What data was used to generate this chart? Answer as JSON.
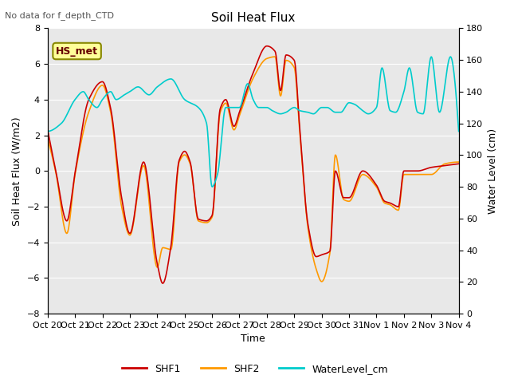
{
  "title": "Soil Heat Flux",
  "top_left_note": "No data for f_depth_CTD",
  "ylabel_left": "Soil Heat Flux (W/m2)",
  "ylabel_right": "Water Level (cm)",
  "xlabel": "Time",
  "ylim_left": [
    -8,
    8
  ],
  "ylim_right": [
    0,
    180
  ],
  "annotation_box": "HS_met",
  "bg_color": "#e8e8e8",
  "shf1_color": "#cc0000",
  "shf2_color": "#ff9900",
  "water_color": "#00cccc",
  "xtick_labels": [
    "Oct 20",
    "Oct 21",
    "Oct 22",
    "Oct 23",
    "Oct 24",
    "Oct 25",
    "Oct 26",
    "Oct 27",
    "Oct 28",
    "Oct 29",
    "Oct 30",
    "Oct 31",
    "Nov 1",
    "Nov 2",
    "Nov 3",
    "Nov 4"
  ],
  "xlim": [
    0,
    15
  ],
  "yticks_left": [
    -8,
    -6,
    -4,
    -2,
    0,
    2,
    4,
    6,
    8
  ],
  "yticks_right": [
    0,
    20,
    40,
    60,
    80,
    100,
    120,
    140,
    160,
    180
  ],
  "line_width": 1.2,
  "legend_items": [
    "SHF1",
    "SHF2",
    "WaterLevel_cm"
  ],
  "shf1_key_points": {
    "x": [
      0,
      0.3,
      0.7,
      1.0,
      1.5,
      2.0,
      2.3,
      2.7,
      3.0,
      3.5,
      4.0,
      4.2,
      4.5,
      4.8,
      5.0,
      5.2,
      5.5,
      5.8,
      6.0,
      6.3,
      6.5,
      6.8,
      7.0,
      7.5,
      8.0,
      8.3,
      8.5,
      8.7,
      9.0,
      9.2,
      9.5,
      9.8,
      10.0,
      10.3,
      10.5,
      10.8,
      11.0,
      11.5,
      12.0,
      12.3,
      12.5,
      12.8,
      13.0,
      13.5,
      14.0,
      14.5,
      15.0
    ],
    "y": [
      2.3,
      0.0,
      -2.8,
      -0.1,
      4.0,
      5.0,
      3.5,
      -1.5,
      -3.5,
      0.5,
      -5.2,
      -6.3,
      -4.2,
      0.6,
      1.1,
      0.5,
      -2.7,
      -2.8,
      -2.5,
      3.5,
      4.0,
      2.5,
      3.3,
      5.5,
      7.0,
      6.7,
      4.5,
      6.5,
      6.2,
      2.4,
      -3.0,
      -4.8,
      -4.7,
      -4.5,
      0.0,
      -1.5,
      -1.5,
      0.0,
      -0.8,
      -1.7,
      -1.8,
      -2.0,
      0.0,
      0.0,
      0.2,
      0.3,
      0.4
    ]
  },
  "shf2_key_points": {
    "x": [
      0,
      0.3,
      0.7,
      1.0,
      1.5,
      2.0,
      2.3,
      2.7,
      3.0,
      3.5,
      4.0,
      4.2,
      4.5,
      4.8,
      5.0,
      5.2,
      5.5,
      5.8,
      6.0,
      6.3,
      6.5,
      6.8,
      7.0,
      7.5,
      8.0,
      8.3,
      8.5,
      8.7,
      9.0,
      9.2,
      9.5,
      9.8,
      10.0,
      10.3,
      10.5,
      10.8,
      11.0,
      11.5,
      12.0,
      12.3,
      12.5,
      12.8,
      13.0,
      13.5,
      14.0,
      14.5,
      15.0
    ],
    "y": [
      1.8,
      -0.1,
      -3.5,
      -0.2,
      3.3,
      4.8,
      3.3,
      -2.0,
      -3.6,
      0.3,
      -5.4,
      -4.3,
      -4.4,
      0.5,
      0.9,
      0.4,
      -2.8,
      -2.9,
      -2.6,
      3.3,
      3.8,
      2.3,
      3.1,
      5.2,
      6.3,
      6.4,
      4.2,
      6.2,
      5.8,
      2.2,
      -3.2,
      -5.5,
      -6.2,
      -4.6,
      0.9,
      -1.6,
      -1.7,
      -0.2,
      -0.9,
      -1.8,
      -1.9,
      -2.2,
      -0.2,
      -0.2,
      -0.2,
      0.4,
      0.5
    ]
  },
  "water_key_points": {
    "x": [
      0,
      0.5,
      1.0,
      1.3,
      1.5,
      1.8,
      2.0,
      2.3,
      2.5,
      2.8,
      3.0,
      3.3,
      3.7,
      4.0,
      4.5,
      5.0,
      5.5,
      5.8,
      6.0,
      6.2,
      6.5,
      7.0,
      7.3,
      7.5,
      7.7,
      8.0,
      8.2,
      8.5,
      8.7,
      9.0,
      9.2,
      9.5,
      9.7,
      10.0,
      10.2,
      10.5,
      10.7,
      11.0,
      11.2,
      11.5,
      11.7,
      12.0,
      12.2,
      12.5,
      12.7,
      13.0,
      13.2,
      13.5,
      13.7,
      14.0,
      14.3,
      14.7,
      15.0
    ],
    "y": [
      115,
      120,
      135,
      140,
      135,
      130,
      135,
      140,
      135,
      138,
      140,
      143,
      138,
      143,
      148,
      135,
      130,
      120,
      80,
      88,
      130,
      130,
      145,
      135,
      130,
      130,
      128,
      126,
      127,
      130,
      128,
      127,
      126,
      130,
      130,
      127,
      127,
      133,
      132,
      128,
      126,
      130,
      155,
      128,
      127,
      140,
      155,
      127,
      126,
      162,
      127,
      162,
      115
    ]
  }
}
